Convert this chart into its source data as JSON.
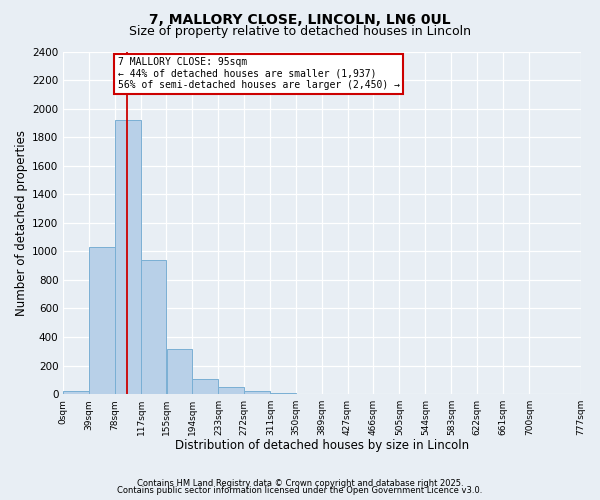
{
  "title": "7, MALLORY CLOSE, LINCOLN, LN6 0UL",
  "subtitle": "Size of property relative to detached houses in Lincoln",
  "bar_values": [
    20,
    1030,
    1920,
    940,
    315,
    105,
    50,
    20,
    5,
    0,
    0,
    0,
    0,
    0,
    0,
    0,
    0,
    0,
    0
  ],
  "bin_edges": [
    0,
    39,
    78,
    117,
    155,
    194,
    233,
    272,
    311,
    350,
    389,
    427,
    466,
    505,
    544,
    583,
    622,
    661,
    700,
    777
  ],
  "x_labels": [
    "0sqm",
    "39sqm",
    "78sqm",
    "117sqm",
    "155sqm",
    "194sqm",
    "233sqm",
    "272sqm",
    "311sqm",
    "350sqm",
    "389sqm",
    "427sqm",
    "466sqm",
    "505sqm",
    "544sqm",
    "583sqm",
    "622sqm",
    "661sqm",
    "700sqm",
    "777sqm"
  ],
  "xlabel": "Distribution of detached houses by size in Lincoln",
  "ylabel": "Number of detached properties",
  "ylim": [
    0,
    2400
  ],
  "yticks": [
    0,
    200,
    400,
    600,
    800,
    1000,
    1200,
    1400,
    1600,
    1800,
    2000,
    2200,
    2400
  ],
  "bar_color": "#b8d0e8",
  "bar_edge_color": "#7aafd4",
  "vline_x": 95,
  "vline_color": "#cc0000",
  "annotation_title": "7 MALLORY CLOSE: 95sqm",
  "annotation_line1": "← 44% of detached houses are smaller (1,937)",
  "annotation_line2": "56% of semi-detached houses are larger (2,450) →",
  "annotation_box_color": "#ffffff",
  "annotation_box_edge": "#cc0000",
  "footer1": "Contains HM Land Registry data © Crown copyright and database right 2025.",
  "footer2": "Contains public sector information licensed under the Open Government Licence v3.0.",
  "bg_color": "#e8eef4",
  "grid_color": "#ffffff",
  "title_fontsize": 10,
  "subtitle_fontsize": 9
}
